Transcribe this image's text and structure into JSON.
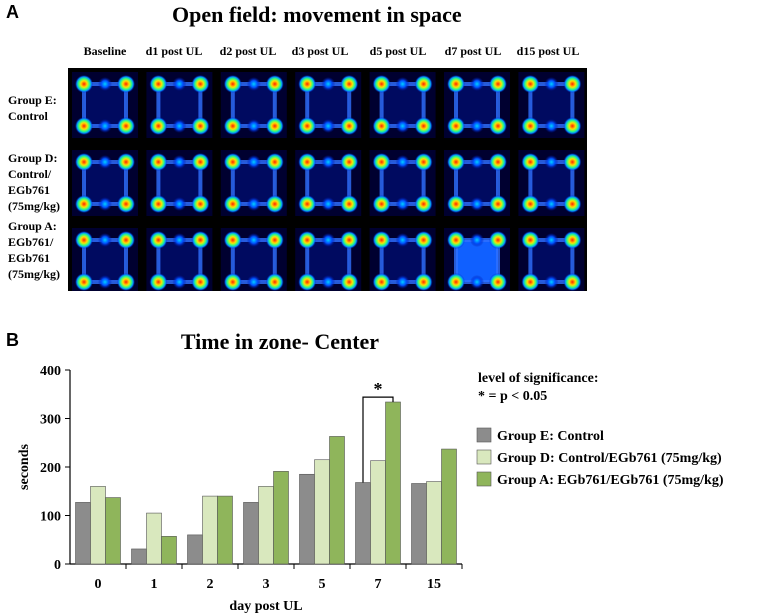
{
  "panel_a": {
    "letter": "A",
    "title": "Open field: movement in space",
    "columns": [
      "Baseline",
      "d1 post UL",
      "d2 post UL",
      "d3 post UL",
      "d5 post UL",
      "d7 post UL",
      "d15 post UL"
    ],
    "rows": [
      [
        "Group E:",
        "Control"
      ],
      [
        "Group D:",
        "Control/",
        "EGb761",
        "(75mg/kg)"
      ],
      [
        "Group A:",
        "EGb761/",
        "EGb761",
        "(75mg/kg)"
      ]
    ]
  },
  "panel_b": {
    "letter": "B",
    "significance": {
      "heading": "level of significance:",
      "legend_text": "* = p < 0.05",
      "marker": "*"
    }
  },
  "chart_data": {
    "type": "bar",
    "title": "Time in zone- Center",
    "xlabel": "day post UL",
    "ylabel": "seconds",
    "ylim": [
      0,
      400
    ],
    "yticks": [
      0,
      100,
      200,
      300,
      400
    ],
    "categories": [
      "0",
      "1",
      "2",
      "3",
      "5",
      "7",
      "15"
    ],
    "series": [
      {
        "name": "Group E: Control",
        "color": "#8c8c8c",
        "values": [
          127,
          31,
          60,
          127,
          185,
          168,
          166
        ]
      },
      {
        "name": "Group D: Control/EGb761 (75mg/kg)",
        "color": "#d9e8be",
        "values": [
          160,
          105,
          140,
          160,
          215,
          213,
          170
        ]
      },
      {
        "name": "Group A: EGb761/EGb761 (75mg/kg)",
        "color": "#8fb55b",
        "values": [
          137,
          57,
          140,
          191,
          263,
          334,
          237
        ]
      }
    ],
    "legend_position": "right",
    "grid": false
  }
}
